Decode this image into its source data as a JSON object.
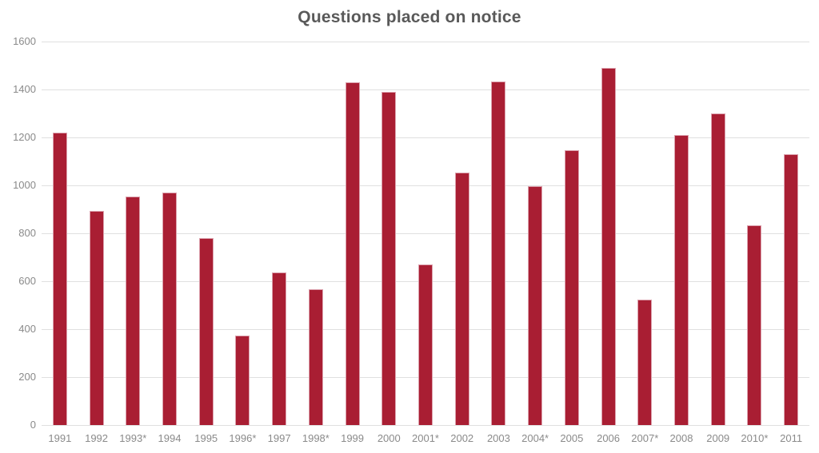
{
  "chart_data": {
    "type": "bar",
    "title": "Questions placed on notice",
    "categories": [
      "1991",
      "1992",
      "1993*",
      "1994",
      "1995",
      "1996*",
      "1997",
      "1998*",
      "1999",
      "2000",
      "2001*",
      "2002",
      "2003",
      "2004*",
      "2005",
      "2006",
      "2007*",
      "2008",
      "2009",
      "2010*",
      "2011"
    ],
    "values": [
      1220,
      895,
      955,
      970,
      780,
      375,
      637,
      567,
      1430,
      1390,
      671,
      1053,
      1434,
      998,
      1146,
      1491,
      525,
      1209,
      1301,
      835,
      1129
    ],
    "xlabel": "",
    "ylabel": "",
    "ylim": [
      0,
      1600
    ],
    "yticks": [
      0,
      200,
      400,
      600,
      800,
      1000,
      1200,
      1400,
      1600
    ],
    "grid": true,
    "legend": false,
    "colors": {
      "bar_fill": "#A91E33",
      "bar_edge": "#DCA2AE",
      "title_text": "#595959",
      "axis_text": "#8A8A8A",
      "gridline": "#E0E0E0",
      "background": "#FFFFFF"
    }
  }
}
